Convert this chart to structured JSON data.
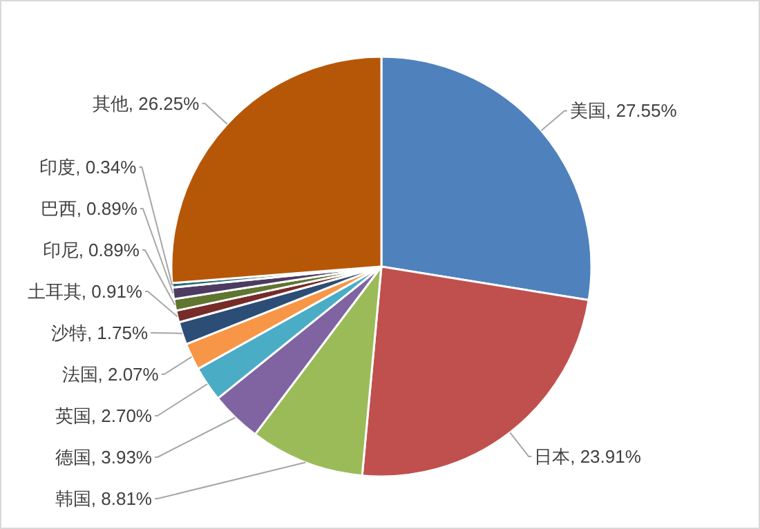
{
  "chart_data": {
    "type": "pie",
    "categories": [
      "美国",
      "日本",
      "韩国",
      "德国",
      "英国",
      "法国",
      "沙特",
      "土耳其",
      "印尼",
      "巴西",
      "印度",
      "其他"
    ],
    "values": [
      27.55,
      23.91,
      8.81,
      3.93,
      2.7,
      2.07,
      1.75,
      0.91,
      0.89,
      0.89,
      0.34,
      26.25
    ],
    "value_labels": [
      ", 27.55%",
      ", 23.91%",
      ", 8.81%",
      ", 3.93%",
      ", 2.70%",
      ", 2.07%",
      ", 1.75%",
      ", 0.91%",
      ", 0.89%",
      ", 0.89%",
      ", 0.34%",
      ", 26.25%"
    ],
    "colors": [
      "#4f81bd",
      "#c0504d",
      "#9bbb59",
      "#8064a2",
      "#4bacc6",
      "#f79646",
      "#2c4d75",
      "#772c2a",
      "#5f7530",
      "#4d3b62",
      "#276a7c",
      "#b65708"
    ]
  }
}
